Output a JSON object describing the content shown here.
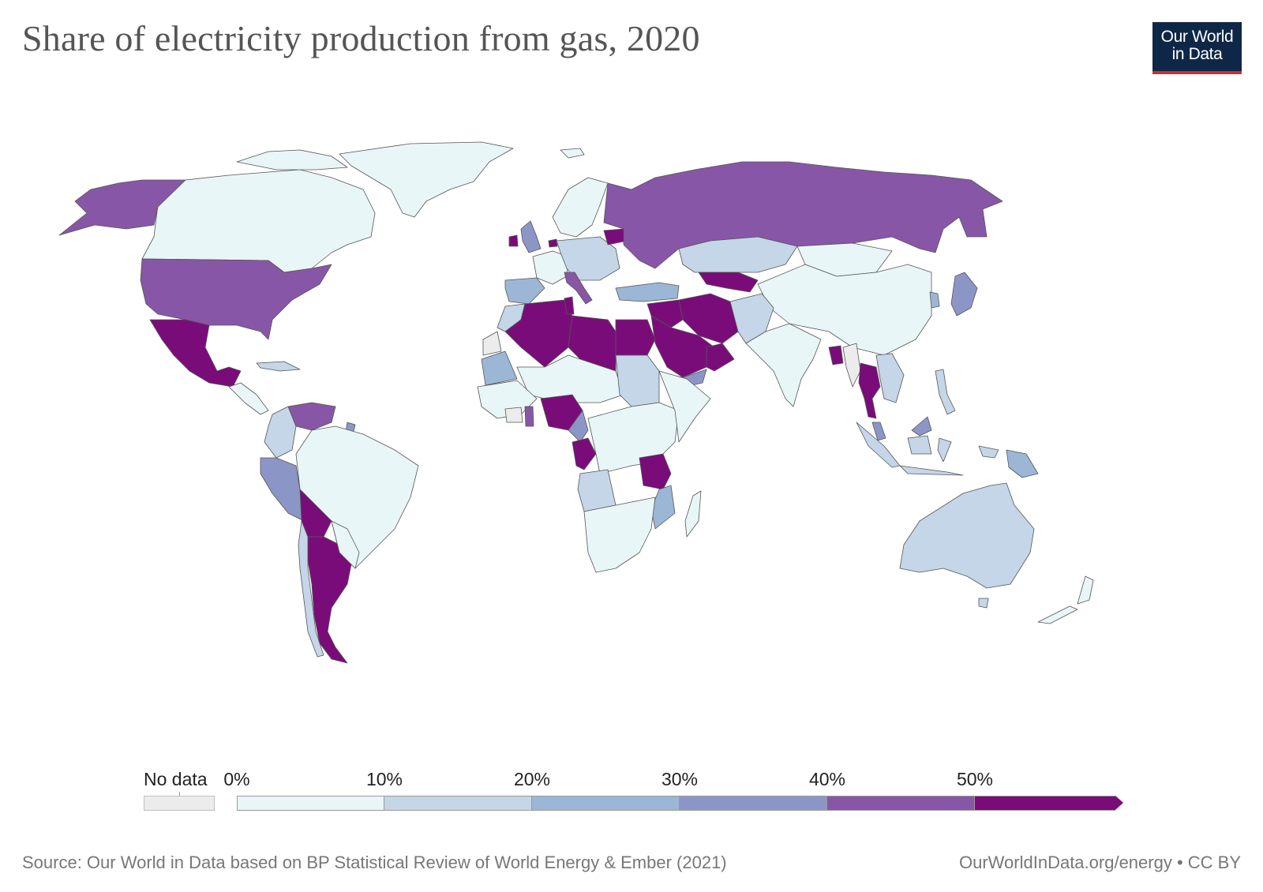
{
  "title": "Share of electricity production from gas, 2020",
  "logo": {
    "line1": "Our World",
    "line2": "in Data"
  },
  "legend": {
    "no_data_label": "No data",
    "ticks": [
      "0%",
      "10%",
      "20%",
      "30%",
      "40%",
      "50%"
    ],
    "bins": [
      {
        "range": "0–10%",
        "color": "#e9f6f8"
      },
      {
        "range": "10–20%",
        "color": "#c4d6e7"
      },
      {
        "range": "20–30%",
        "color": "#9cb6d6"
      },
      {
        "range": "30–40%",
        "color": "#8c96c6"
      },
      {
        "range": "40–50%",
        "color": "#8856a7"
      },
      {
        "range": ">50%",
        "color": "#7a0c7a"
      }
    ],
    "no_data_color": "#ececec"
  },
  "source": "Source: Our World in Data based on BP Statistical Review of World Energy & Ember (2021)",
  "credit": "OurWorldInData.org/energy • CC BY",
  "chart_data": {
    "type": "choropleth",
    "unit": "%",
    "regions": [
      {
        "name": "Canada",
        "bin": "0–10%"
      },
      {
        "name": "Greenland",
        "bin": "0–10%"
      },
      {
        "name": "United States",
        "bin": "40–50%"
      },
      {
        "name": "Alaska",
        "bin": "40–50%"
      },
      {
        "name": "Mexico",
        "bin": ">50%"
      },
      {
        "name": "Cuba",
        "bin": "10–20%"
      },
      {
        "name": "Central America",
        "bin": "0–10%"
      },
      {
        "name": "Colombia",
        "bin": "10–20%"
      },
      {
        "name": "Venezuela",
        "bin": "40–50%"
      },
      {
        "name": "Trinidad and Tobago",
        "bin": "30–40%"
      },
      {
        "name": "Peru",
        "bin": "30–40%"
      },
      {
        "name": "Brazil",
        "bin": "0–10%"
      },
      {
        "name": "Bolivia",
        "bin": ">50%"
      },
      {
        "name": "Argentina",
        "bin": ">50%"
      },
      {
        "name": "Chile",
        "bin": "10–20%"
      },
      {
        "name": "Uruguay",
        "bin": "0–10%"
      },
      {
        "name": "Paraguay",
        "bin": "0–10%"
      },
      {
        "name": "United Kingdom",
        "bin": "30–40%"
      },
      {
        "name": "Ireland",
        "bin": ">50%"
      },
      {
        "name": "Netherlands",
        "bin": ">50%"
      },
      {
        "name": "Belarus",
        "bin": ">50%"
      },
      {
        "name": "Italy",
        "bin": "40–50%"
      },
      {
        "name": "Spain",
        "bin": "20–30%"
      },
      {
        "name": "Portugal",
        "bin": "20–30%"
      },
      {
        "name": "France",
        "bin": "0–10%"
      },
      {
        "name": "Germany",
        "bin": "10–20%"
      },
      {
        "name": "Scandinavia",
        "bin": "0–10%"
      },
      {
        "name": "Turkey",
        "bin": "20–30%"
      },
      {
        "name": "Russia",
        "bin": "40–50%"
      },
      {
        "name": "Kazakhstan",
        "bin": "10–20%"
      },
      {
        "name": "Uzbekistan",
        "bin": ">50%"
      },
      {
        "name": "Turkmenistan",
        "bin": ">50%"
      },
      {
        "name": "Iran",
        "bin": ">50%"
      },
      {
        "name": "Iraq",
        "bin": ">50%"
      },
      {
        "name": "Saudi Arabia",
        "bin": ">50%"
      },
      {
        "name": "Oman",
        "bin": ">50%"
      },
      {
        "name": "Yemen",
        "bin": "30–40%"
      },
      {
        "name": "Egypt",
        "bin": ">50%"
      },
      {
        "name": "Libya",
        "bin": ">50%"
      },
      {
        "name": "Algeria",
        "bin": ">50%"
      },
      {
        "name": "Tunisia",
        "bin": ">50%"
      },
      {
        "name": "Morocco",
        "bin": "10–20%"
      },
      {
        "name": "Mauritania",
        "bin": "20–30%"
      },
      {
        "name": "Western Sahara",
        "bin": "No data"
      },
      {
        "name": "Nigeria",
        "bin": ">50%"
      },
      {
        "name": "Ghana",
        "bin": "40–50%"
      },
      {
        "name": "Cameroon",
        "bin": "30–40%"
      },
      {
        "name": "Gabon / Congo",
        "bin": ">50%"
      },
      {
        "name": "Tanzania",
        "bin": ">50%"
      },
      {
        "name": "Sudan",
        "bin": "10–20%"
      },
      {
        "name": "Angola",
        "bin": "10–20%"
      },
      {
        "name": "Mozambique",
        "bin": "20–30%"
      },
      {
        "name": "South Africa",
        "bin": "0–10%"
      },
      {
        "name": "Pakistan",
        "bin": "10–20%"
      },
      {
        "name": "Afghanistan",
        "bin": "10–20%"
      },
      {
        "name": "India",
        "bin": "0–10%"
      },
      {
        "name": "China",
        "bin": "0–10%"
      },
      {
        "name": "Mongolia",
        "bin": "0–10%"
      },
      {
        "name": "Bangladesh",
        "bin": ">50%"
      },
      {
        "name": "Myanmar",
        "bin": "No data"
      },
      {
        "name": "Thailand",
        "bin": ">50%"
      },
      {
        "name": "Malaysia",
        "bin": "30–40%"
      },
      {
        "name": "Vietnam",
        "bin": "10–20%"
      },
      {
        "name": "Indonesia",
        "bin": "10–20%"
      },
      {
        "name": "Philippines",
        "bin": "10–20%"
      },
      {
        "name": "Japan",
        "bin": "30–40%"
      },
      {
        "name": "South Korea",
        "bin": "20–30%"
      },
      {
        "name": "Papua New Guinea",
        "bin": "20–30%"
      },
      {
        "name": "Australia",
        "bin": "10–20%"
      },
      {
        "name": "New Zealand",
        "bin": "0–10%"
      }
    ]
  }
}
